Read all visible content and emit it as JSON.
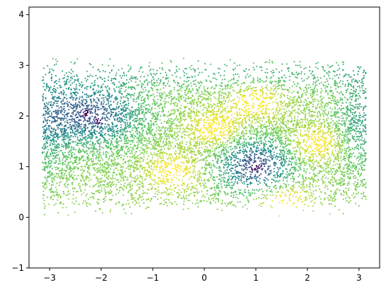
{
  "chart_data": {
    "type": "scatter",
    "title": "",
    "xlabel": "",
    "ylabel": "",
    "xlim": [
      -3.4,
      3.4
    ],
    "ylim": [
      -1,
      4.15
    ],
    "xticks": [
      -3,
      -2,
      -1,
      0,
      1,
      2,
      3
    ],
    "yticks": [
      -1,
      0,
      1,
      2,
      3,
      4
    ],
    "xtick_labels": [
      "−3",
      "−2",
      "−1",
      "0",
      "1",
      "2",
      "3"
    ],
    "ytick_labels": [
      "−1",
      "0",
      "1",
      "2",
      "3",
      "4"
    ],
    "grid": false,
    "legend": "none",
    "colormap": "viridis",
    "colormap_stops": [
      "#440154",
      "#3b528b",
      "#21918c",
      "#5ec962",
      "#fde725"
    ],
    "point_color_range": "dark purple (low) to yellow (high)",
    "x_range_of_points": [
      -3.14,
      3.14
    ],
    "y_range_of_points": [
      0.0,
      3.14
    ],
    "low_value_clusters": [
      {
        "center": [
          1.0,
          1.0
        ],
        "description": "large dark teal/purple basin"
      },
      {
        "center": [
          -2.3,
          2.05
        ],
        "description": "dark blue/purple basin"
      },
      {
        "center": [
          -2.05,
          1.9
        ],
        "description": "dark purple point"
      }
    ],
    "high_value_regions": [
      {
        "center": [
          0.2,
          1.75
        ]
      },
      {
        "center": [
          1.0,
          2.3
        ]
      },
      {
        "center": [
          2.2,
          1.45
        ]
      },
      {
        "center": [
          -0.6,
          0.9
        ]
      },
      {
        "center": [
          1.5,
          0.35
        ]
      }
    ]
  }
}
